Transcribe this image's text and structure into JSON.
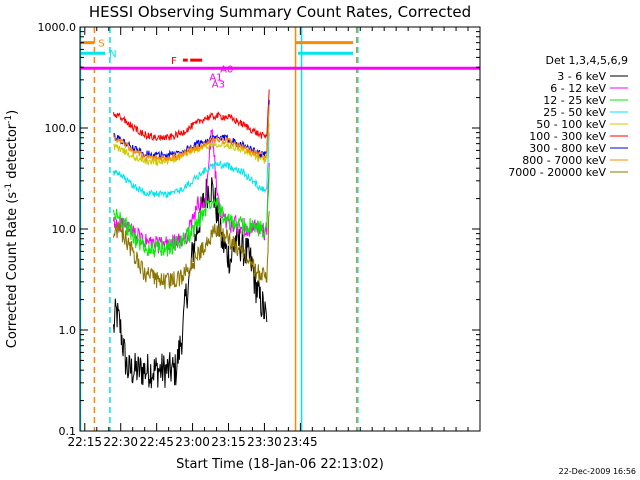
{
  "chart_data": {
    "type": "line",
    "title": "HESSI Observing Summary Count Rates, Corrected",
    "xlabel": "Start Time (18-Jan-06 22:13:02)",
    "ylabel": "Corrected Count Rate (s⁻¹ detector⁻¹)",
    "ylabel_parts": {
      "main": "Corrected Count Rate (s",
      "exp1": "-1",
      "mid": " detector",
      "exp2": "-1",
      "end": ")"
    },
    "yscale": "log",
    "ylim": [
      0.1,
      1000
    ],
    "xlim_min": [
      1333,
      1500
    ],
    "xtick_labels": [
      "22:15",
      "22:30",
      "22:45",
      "23:00",
      "23:15",
      "23:30",
      "23:45"
    ],
    "xtick_min": [
      1335,
      1350,
      1365,
      1380,
      1395,
      1410,
      1425
    ],
    "ytick_labels": [
      "0.1",
      "1.0",
      "10.0",
      "100.0",
      "1000.0"
    ],
    "ytick_values": [
      0.1,
      1,
      10,
      100,
      1000
    ],
    "legend_header": "Det 1,3,4,5,6,9",
    "legend_position": "right",
    "footer_date": "22-Dec-2009 16:56",
    "data_start_min": 1347,
    "data_end_min": 1422,
    "series": [
      {
        "name": "3 - 6 keV",
        "color": "#000000",
        "x": [
          1347,
          1348,
          1349,
          1350,
          1351,
          1352,
          1353,
          1360,
          1366,
          1370,
          1373,
          1376,
          1377,
          1379,
          1380,
          1382,
          1384,
          1386,
          1388,
          1390,
          1392,
          1394,
          1396,
          1398,
          1400,
          1402,
          1404,
          1405,
          1406,
          1407,
          1408,
          1409,
          1410,
          1411
        ],
        "y": [
          1.0,
          1.5,
          1.3,
          1.0,
          0.7,
          0.5,
          0.4,
          0.4,
          0.4,
          0.4,
          0.4,
          1.0,
          2.0,
          3.5,
          6.0,
          10,
          16,
          24,
          26,
          16,
          8,
          6,
          5,
          8,
          7,
          6,
          5,
          4,
          3,
          2.5,
          2,
          1.8,
          1.5,
          1.2
        ]
      },
      {
        "name": "6 - 12 keV",
        "color": "#ff00ff",
        "x": [
          1347,
          1350,
          1355,
          1360,
          1365,
          1370,
          1375,
          1378,
          1380,
          1382,
          1384,
          1386,
          1387,
          1388,
          1389,
          1390,
          1391,
          1392,
          1394,
          1396,
          1398,
          1400,
          1402,
          1404,
          1406,
          1408,
          1410,
          1411,
          1412
        ],
        "y": [
          11,
          11.5,
          9,
          7.5,
          7,
          7,
          7.5,
          9,
          12,
          18,
          15,
          22,
          60,
          90,
          55,
          25,
          18,
          14,
          12,
          11,
          11,
          10.5,
          10.5,
          10,
          10,
          9.5,
          9.5,
          9.5,
          45
        ]
      },
      {
        "name": "12 - 25 keV",
        "color": "#00ee00",
        "x": [
          1347,
          1350,
          1355,
          1360,
          1365,
          1370,
          1375,
          1380,
          1384,
          1386,
          1388,
          1390,
          1392,
          1394,
          1396,
          1400,
          1404,
          1408,
          1410,
          1411,
          1412
        ],
        "y": [
          14,
          13,
          8.5,
          6.5,
          6.3,
          6.5,
          7.5,
          9.5,
          14,
          17,
          20,
          20,
          15,
          12,
          11.5,
          11,
          10.5,
          10,
          10,
          10,
          40
        ]
      },
      {
        "name": "25 - 50 keV",
        "color": "#00e5ee",
        "x": [
          1347,
          1350,
          1355,
          1360,
          1365,
          1370,
          1375,
          1380,
          1385,
          1390,
          1395,
          1400,
          1405,
          1408,
          1410,
          1411,
          1412
        ],
        "y": [
          36,
          34,
          27,
          23,
          22,
          22,
          24,
          30,
          38,
          44,
          42,
          38,
          30,
          26,
          25,
          25,
          90
        ]
      },
      {
        "name": "50 - 100 keV",
        "color": "#cccc00",
        "x": [
          1347,
          1350,
          1355,
          1360,
          1365,
          1370,
          1375,
          1380,
          1385,
          1390,
          1395,
          1400,
          1405,
          1408,
          1410,
          1411,
          1412
        ],
        "y": [
          66,
          62,
          52,
          47,
          46,
          47,
          52,
          60,
          66,
          70,
          68,
          62,
          54,
          50,
          48,
          48,
          110
        ]
      },
      {
        "name": "100 - 300 keV",
        "color": "#ff0000",
        "x": [
          1347,
          1350,
          1355,
          1360,
          1365,
          1370,
          1375,
          1380,
          1385,
          1390,
          1395,
          1400,
          1405,
          1408,
          1410,
          1411,
          1412
        ],
        "y": [
          135,
          128,
          102,
          86,
          80,
          80,
          88,
          105,
          125,
          132,
          128,
          112,
          95,
          86,
          82,
          85,
          240
        ]
      },
      {
        "name": "300 - 800 keV",
        "color": "#0000ee",
        "x": [
          1347,
          1350,
          1355,
          1360,
          1365,
          1370,
          1375,
          1380,
          1385,
          1390,
          1395,
          1400,
          1405,
          1408,
          1410,
          1411,
          1412
        ],
        "y": [
          82,
          76,
          63,
          56,
          54,
          54,
          58,
          66,
          74,
          80,
          78,
          70,
          61,
          56,
          54,
          56,
          190
        ]
      },
      {
        "name": "800 - 7000 keV",
        "color": "#ff8800",
        "x": [
          1347,
          1350,
          1355,
          1360,
          1365,
          1370,
          1375,
          1380,
          1385,
          1390,
          1395,
          1400,
          1405,
          1408,
          1410,
          1411,
          1412
        ],
        "y": [
          80,
          74,
          60,
          52,
          50,
          50,
          54,
          62,
          70,
          76,
          74,
          66,
          58,
          54,
          51,
          53,
          170
        ]
      },
      {
        "name": "7000 - 20000 keV",
        "color": "#8b7500",
        "x": [
          1347,
          1350,
          1355,
          1358,
          1360,
          1365,
          1370,
          1375,
          1380,
          1385,
          1390,
          1395,
          1400,
          1403,
          1405,
          1408,
          1410,
          1411,
          1412
        ],
        "y": [
          10,
          9.5,
          6,
          4.2,
          3.6,
          3.1,
          3.0,
          3.3,
          4.5,
          7,
          10,
          8,
          6,
          5,
          4.2,
          3.6,
          3.4,
          3.4,
          15
        ]
      }
    ],
    "vertical_markers": [
      {
        "x": 1333.2,
        "color": "#00e5ee",
        "style": "solid"
      },
      {
        "x": 1339,
        "color": "#ff8800",
        "style": "dashed"
      },
      {
        "x": 1345.5,
        "color": "#00e5ee",
        "style": "dashed"
      },
      {
        "x": 1423,
        "color": "#ff8800",
        "style": "solid"
      },
      {
        "x": 1425.5,
        "color": "#00e5ee",
        "style": "solid"
      },
      {
        "x": 1448.5,
        "color": "#ff8800",
        "style": "dashed"
      },
      {
        "x": 1449,
        "color": "#00e5ee",
        "style": "dashed"
      }
    ],
    "flag_bars": [
      {
        "label": "S",
        "color": "#ff8800",
        "y": 700,
        "ranges": [
          [
            1333,
            1339
          ],
          [
            1423,
            1447
          ]
        ]
      },
      {
        "label": "N",
        "color": "#00e5ee",
        "y": 550,
        "ranges": [
          [
            1333,
            1343.5
          ],
          [
            1424,
            1447
          ]
        ]
      },
      {
        "label": "",
        "color": "#ff00ff",
        "y": 390,
        "ranges": [
          [
            1333,
            1500
          ]
        ]
      },
      {
        "label": "F",
        "color": "#ff0000",
        "y": 470,
        "ranges": [
          [
            1376,
            1378
          ],
          [
            1379,
            1384
          ]
        ]
      }
    ],
    "flag_labels": [
      {
        "label": "A0",
        "color": "#ff00ff",
        "x": 1391.5,
        "y": 390
      },
      {
        "label": "A1",
        "color": "#ff00ff",
        "x": 1387,
        "y": 325
      },
      {
        "label": "A3",
        "color": "#ff00ff",
        "x": 1388,
        "y": 275
      }
    ]
  }
}
